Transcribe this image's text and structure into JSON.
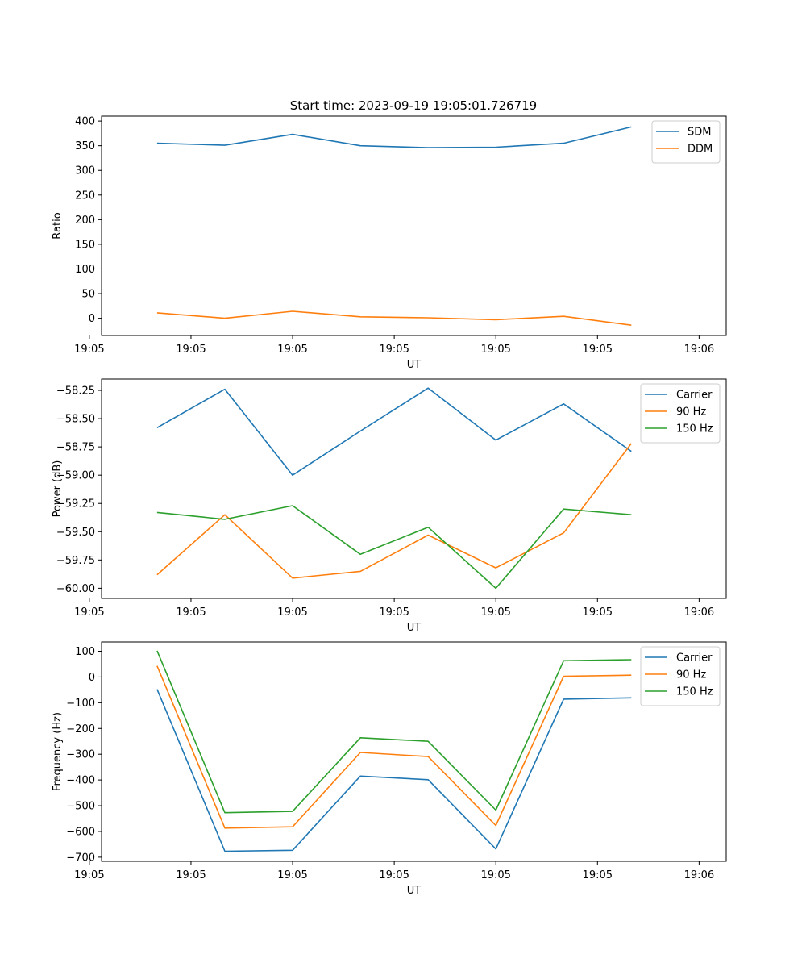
{
  "figure_title": "Start time: 2023-09-19 19:05:01.726719",
  "chart_data": [
    {
      "type": "line",
      "title": "Start time: 2023-09-19 19:05:01.726719",
      "xlabel": "UT",
      "ylabel": "Ratio",
      "x": [
        1,
        2,
        3,
        4,
        5,
        6,
        7,
        8
      ],
      "xlim": [
        0.18,
        9.4
      ],
      "x_ticks": [
        0,
        1.5,
        3,
        4.5,
        6,
        7.5,
        9
      ],
      "x_tick_labels": [
        "19:05",
        "19:05",
        "19:05",
        "19:05",
        "19:05",
        "19:05",
        "19:06"
      ],
      "ylim": [
        -35,
        410
      ],
      "y_ticks": [
        0,
        50,
        100,
        150,
        200,
        250,
        300,
        350,
        400
      ],
      "y_tick_labels": [
        "0",
        "50",
        "100",
        "150",
        "200",
        "250",
        "300",
        "350",
        "400"
      ],
      "legend_position": "top-right",
      "series": [
        {
          "name": "SDM",
          "color": "#1f77b4",
          "values": [
            355,
            351,
            373,
            350,
            346,
            347,
            355,
            388
          ]
        },
        {
          "name": "DDM",
          "color": "#ff7f0e",
          "values": [
            11,
            0,
            14,
            3,
            1,
            -3,
            4,
            -14
          ]
        }
      ]
    },
    {
      "type": "line",
      "title": "",
      "xlabel": "UT",
      "ylabel": "Power (dB)",
      "x": [
        1,
        2,
        3,
        4,
        5,
        6,
        7,
        8
      ],
      "xlim": [
        0.18,
        9.4
      ],
      "x_ticks": [
        0,
        1.5,
        3,
        4.5,
        6,
        7.5,
        9
      ],
      "x_tick_labels": [
        "19:05",
        "19:05",
        "19:05",
        "19:05",
        "19:05",
        "19:05",
        "19:06"
      ],
      "ylim": [
        -60.09,
        -58.15
      ],
      "y_ticks": [
        -60.0,
        -59.75,
        -59.5,
        -59.25,
        -59.0,
        -58.75,
        -58.5,
        -58.25
      ],
      "y_tick_labels": [
        "−60.00",
        "−59.75",
        "−59.50",
        "−59.25",
        "−59.00",
        "−58.75",
        "−58.50",
        "−58.25"
      ],
      "legend_position": "top-right",
      "series": [
        {
          "name": "Carrier",
          "color": "#1f77b4",
          "values": [
            -58.58,
            -58.24,
            -59.0,
            -58.61,
            -58.23,
            -58.69,
            -58.37,
            -58.79
          ]
        },
        {
          "name": "90 Hz",
          "color": "#ff7f0e",
          "values": [
            -59.88,
            -59.35,
            -59.91,
            -59.85,
            -59.53,
            -59.82,
            -59.51,
            -58.72
          ]
        },
        {
          "name": "150 Hz",
          "color": "#2ca02c",
          "values": [
            -59.33,
            -59.39,
            -59.27,
            -59.7,
            -59.46,
            -60.0,
            -59.3,
            -59.35
          ]
        }
      ]
    },
    {
      "type": "line",
      "title": "",
      "xlabel": "UT",
      "ylabel": "Frequency (Hz)",
      "x": [
        1,
        2,
        3,
        4,
        5,
        6,
        7,
        8
      ],
      "xlim": [
        0.18,
        9.4
      ],
      "x_ticks": [
        0,
        1.5,
        3,
        4.5,
        6,
        7.5,
        9
      ],
      "x_tick_labels": [
        "19:05",
        "19:05",
        "19:05",
        "19:05",
        "19:05",
        "19:05",
        "19:06"
      ],
      "ylim": [
        -716,
        136
      ],
      "y_ticks": [
        -700,
        -600,
        -500,
        -400,
        -300,
        -200,
        -100,
        0,
        100
      ],
      "y_tick_labels": [
        "−700",
        "−600",
        "−500",
        "−400",
        "−300",
        "−200",
        "−100",
        "0",
        "100"
      ],
      "legend_position": "top-right",
      "series": [
        {
          "name": "Carrier",
          "color": "#1f77b4",
          "values": [
            -48,
            -677,
            -673,
            -385,
            -399,
            -668,
            -86,
            -81
          ]
        },
        {
          "name": "90 Hz",
          "color": "#ff7f0e",
          "values": [
            43,
            -587,
            -582,
            -293,
            -309,
            -577,
            3,
            7
          ]
        },
        {
          "name": "150 Hz",
          "color": "#2ca02c",
          "values": [
            102,
            -527,
            -522,
            -236,
            -250,
            -517,
            63,
            67
          ]
        }
      ]
    }
  ]
}
